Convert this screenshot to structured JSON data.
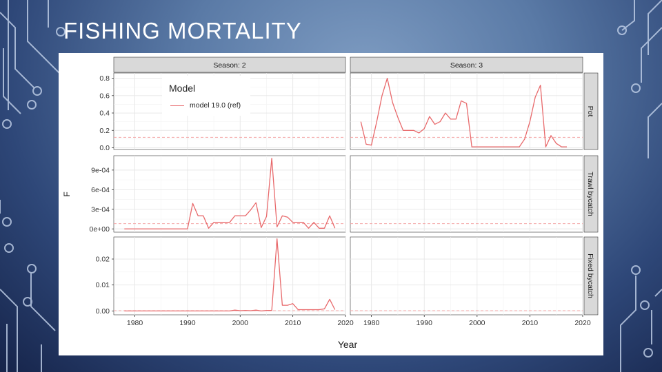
{
  "slide": {
    "title": "FISHING MORTALITY"
  },
  "chart_data": {
    "type": "line",
    "facet_cols": [
      "Season: 2",
      "Season: 3"
    ],
    "facet_rows": [
      "Pot",
      "Trawl bycatch",
      "Fixed bycatch"
    ],
    "xlabel": "Year",
    "ylabel": "F",
    "xlim": [
      1976,
      2020
    ],
    "x_ticks": [
      1980,
      1990,
      2000,
      2010,
      2020
    ],
    "x_tick_labels": [
      "1980",
      "1990",
      "2000",
      "2010",
      "2020"
    ],
    "legend": {
      "title": "Model",
      "entries": [
        "model 19.0 (ref)"
      ],
      "position": "top-left"
    },
    "series_color": "#e8696b",
    "ref_line_color": "#f4a8a8",
    "rows": [
      {
        "name": "Pot",
        "ylim": [
          -0.02,
          0.86
        ],
        "y_ticks": [
          0,
          0.2,
          0.4,
          0.6,
          0.8
        ],
        "y_tick_labels": [
          "0.0",
          "0.2",
          "0.4",
          "0.6",
          "0.8"
        ],
        "ref": 0.12,
        "panels": [
          {
            "season": "Season: 2",
            "x": [],
            "y": []
          },
          {
            "season": "Season: 3",
            "x": [
              1978,
              1979,
              1980,
              1981,
              1982,
              1983,
              1984,
              1985,
              1986,
              1987,
              1988,
              1989,
              1990,
              1991,
              1992,
              1993,
              1994,
              1995,
              1996,
              1997,
              1998,
              1999,
              2000,
              2001,
              2002,
              2003,
              2004,
              2005,
              2006,
              2007,
              2008,
              2009,
              2010,
              2011,
              2012,
              2013,
              2014,
              2015,
              2016,
              2017
            ],
            "y": [
              0.3,
              0.04,
              0.03,
              0.3,
              0.6,
              0.8,
              0.52,
              0.35,
              0.2,
              0.2,
              0.2,
              0.17,
              0.22,
              0.36,
              0.27,
              0.3,
              0.4,
              0.33,
              0.33,
              0.54,
              0.51,
              0.01,
              0.01,
              0.01,
              0.01,
              0.01,
              0.01,
              0.01,
              0.01,
              0.01,
              0.01,
              0.1,
              0.3,
              0.58,
              0.72,
              0.01,
              0.14,
              0.05,
              0.01,
              0.01
            ]
          }
        ]
      },
      {
        "name": "Trawl bycatch",
        "ylim": [
          -5e-05,
          0.00112
        ],
        "y_ticks": [
          0,
          0.0003,
          0.0006,
          0.0009
        ],
        "y_tick_labels": [
          "0e+00",
          "3e-04",
          "6e-04",
          "9e-04"
        ],
        "ref": 8e-05,
        "panels": [
          {
            "season": "Season: 2",
            "x": [
              1978,
              1979,
              1980,
              1981,
              1982,
              1983,
              1984,
              1985,
              1986,
              1987,
              1988,
              1989,
              1990,
              1991,
              1992,
              1993,
              1994,
              1995,
              1996,
              1997,
              1998,
              1999,
              2000,
              2001,
              2002,
              2003,
              2004,
              2005,
              2006,
              2007,
              2008,
              2009,
              2010,
              2011,
              2012,
              2013,
              2014,
              2015,
              2016,
              2017,
              2018
            ],
            "y": [
              0,
              0,
              0,
              0,
              0,
              0,
              0,
              0,
              0,
              0,
              0,
              0,
              0,
              0.00039,
              0.0002,
              0.0002,
              1e-05,
              0.0001,
              0.0001,
              0.0001,
              0.0001,
              0.0002,
              0.0002,
              0.0002,
              0.00029,
              0.0004,
              2e-05,
              0.00019,
              0.00108,
              3e-05,
              0.0002,
              0.00018,
              0.0001,
              0.0001,
              0.0001,
              1e-05,
              0.0001,
              1e-05,
              1e-05,
              0.0002,
              1e-05
            ]
          },
          {
            "season": "Season: 3",
            "x": [],
            "y": []
          }
        ]
      },
      {
        "name": "Fixed bycatch",
        "ylim": [
          -0.0015,
          0.0285
        ],
        "y_ticks": [
          0,
          0.01,
          0.02
        ],
        "y_tick_labels": [
          "0.00",
          "0.01",
          "0.02"
        ],
        "ref": 0.0001,
        "panels": [
          {
            "season": "Season: 2",
            "x": [
              1978,
              1979,
              1980,
              1981,
              1982,
              1983,
              1984,
              1985,
              1986,
              1987,
              1988,
              1989,
              1990,
              1991,
              1992,
              1993,
              1994,
              1995,
              1996,
              1997,
              1998,
              1999,
              2000,
              2001,
              2002,
              2003,
              2004,
              2005,
              2006,
              2007,
              2008,
              2009,
              2010,
              2011,
              2012,
              2013,
              2014,
              2015,
              2016,
              2017,
              2018
            ],
            "y": [
              0,
              0,
              0,
              0,
              0,
              0,
              0,
              0,
              0,
              0,
              0,
              0,
              0,
              0,
              0,
              0,
              0,
              0,
              0,
              0,
              0,
              0.0003,
              0.0001,
              0.0002,
              0.0001,
              0.0003,
              0,
              0.0002,
              0.0002,
              0.0278,
              0.0022,
              0.0022,
              0.0028,
              0.0005,
              0.0005,
              0.0005,
              0.0005,
              0.0005,
              0.0008,
              0.0045,
              0.0005
            ]
          },
          {
            "season": "Season: 3",
            "x": [],
            "y": []
          }
        ]
      }
    ]
  }
}
